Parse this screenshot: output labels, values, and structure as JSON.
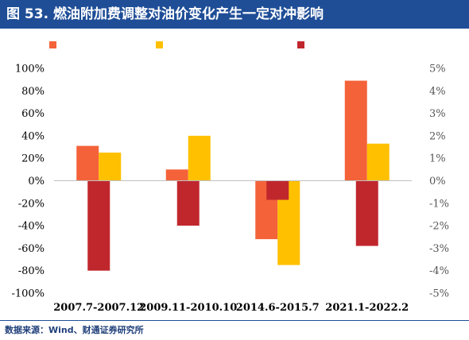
{
  "header": {
    "title": "图 53. 燃油附加费调整对油价变化产生一定对冲影响"
  },
  "footer": {
    "source": "数据来源：Wind、财通证券研究所"
  },
  "chart_data": {
    "type": "bar",
    "categories": [
      "2007.7-2007.12",
      "2009.11-2010.10",
      "2014.6-2015.7",
      "2021.1-2022.2"
    ],
    "series": [
      {
        "axis": "left",
        "color": "#f4623a",
        "values": [
          31,
          10,
          -52,
          89
        ]
      },
      {
        "axis": "left",
        "color": "#ffc000",
        "values": [
          25,
          40,
          -75,
          33
        ]
      },
      {
        "axis": "right",
        "color": "#c0272d",
        "values": [
          -4.0,
          -2.0,
          -0.85,
          -2.9
        ]
      }
    ],
    "y_left": {
      "min": -100,
      "max": 100,
      "step": 20,
      "tick_labels": [
        "-100%",
        "-80%",
        "-60%",
        "-40%",
        "-20%",
        "0%",
        "20%",
        "40%",
        "60%",
        "80%",
        "100%"
      ]
    },
    "y_right": {
      "min": -5,
      "max": 5,
      "step": 1,
      "tick_labels": [
        "-5%",
        "-4%",
        "-3%",
        "-2%",
        "-1%",
        "0%",
        "1%",
        "2%",
        "3%",
        "4%",
        "5%"
      ]
    },
    "legend": "top",
    "grid": false
  }
}
